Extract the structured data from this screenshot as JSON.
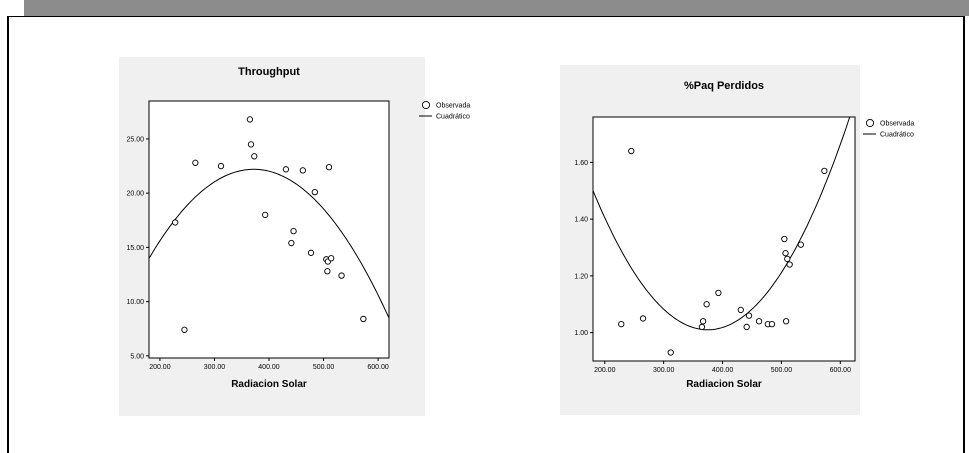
{
  "chart_data": [
    {
      "type": "scatter",
      "title": "Throughput",
      "xlabel": "Radiacion Solar",
      "ylabel": "",
      "xlim": [
        180,
        620
      ],
      "ylim": [
        4.8,
        28.5
      ],
      "xticks": [
        200,
        300,
        400,
        500,
        600
      ],
      "yticks": [
        5,
        10,
        15,
        20,
        25
      ],
      "xtick_labels": [
        "200.00",
        "300.00",
        "400.00",
        "500.00",
        "600.00"
      ],
      "ytick_labels": [
        "5.00",
        "10.00",
        "15.00",
        "20.00",
        "25.00"
      ],
      "legend": {
        "position": "top-right",
        "entries": [
          "Observada",
          "Cuadrático"
        ]
      },
      "series": [
        {
          "name": "Observada",
          "kind": "points",
          "points": [
            [
              228,
              17.3
            ],
            [
              245,
              7.4
            ],
            [
              265,
              22.8
            ],
            [
              312,
              22.5
            ],
            [
              365,
              26.8
            ],
            [
              367,
              24.5
            ],
            [
              373,
              23.4
            ],
            [
              393,
              18.0
            ],
            [
              431,
              22.2
            ],
            [
              441,
              15.4
            ],
            [
              445,
              16.5
            ],
            [
              462,
              22.1
            ],
            [
              477,
              14.5
            ],
            [
              484,
              20.1
            ],
            [
              505,
              13.9
            ],
            [
              507,
              12.8
            ],
            [
              508,
              13.7
            ],
            [
              510,
              22.4
            ],
            [
              514,
              14.0
            ],
            [
              533,
              12.4
            ],
            [
              573,
              8.4
            ]
          ]
        },
        {
          "name": "Cuadrático",
          "kind": "quadratic",
          "coef": {
            "a": -0.000223,
            "vertex_x": 372,
            "vertex_y": 22.2
          },
          "x_range": [
            180,
            620
          ]
        }
      ]
    },
    {
      "type": "scatter",
      "title": "%Paq Perdidos",
      "xlabel": "Radiacion Solar",
      "ylabel": "",
      "xlim": [
        180,
        625
      ],
      "ylim": [
        0.9,
        1.76
      ],
      "xticks": [
        200,
        300,
        400,
        500,
        600
      ],
      "yticks": [
        1.0,
        1.2,
        1.4,
        1.6
      ],
      "xtick_labels": [
        "200.00",
        "300.00",
        "400.00",
        "500.00",
        "600.00"
      ],
      "ytick_labels": [
        "1.00",
        "1.20",
        "1.40",
        "1.60"
      ],
      "legend": {
        "position": "top-right",
        "entries": [
          "Observada",
          "Cuadrático"
        ]
      },
      "series": [
        {
          "name": "Observada",
          "kind": "points",
          "points": [
            [
              228,
              1.03
            ],
            [
              245,
              1.64
            ],
            [
              265,
              1.05
            ],
            [
              312,
              0.93
            ],
            [
              365,
              1.02
            ],
            [
              367,
              1.04
            ],
            [
              373,
              1.1
            ],
            [
              393,
              1.14
            ],
            [
              431,
              1.08
            ],
            [
              441,
              1.02
            ],
            [
              445,
              1.06
            ],
            [
              462,
              1.04
            ],
            [
              477,
              1.03
            ],
            [
              484,
              1.03
            ],
            [
              505,
              1.33
            ],
            [
              507,
              1.28
            ],
            [
              508,
              1.04
            ],
            [
              510,
              1.26
            ],
            [
              514,
              1.24
            ],
            [
              533,
              1.31
            ],
            [
              573,
              1.57
            ]
          ]
        },
        {
          "name": "Cuadrático",
          "kind": "quadratic",
          "coef": {
            "a": 1.29e-05,
            "vertex_x": 375,
            "vertex_y": 1.01
          },
          "x_range": [
            180,
            625
          ]
        }
      ]
    }
  ]
}
